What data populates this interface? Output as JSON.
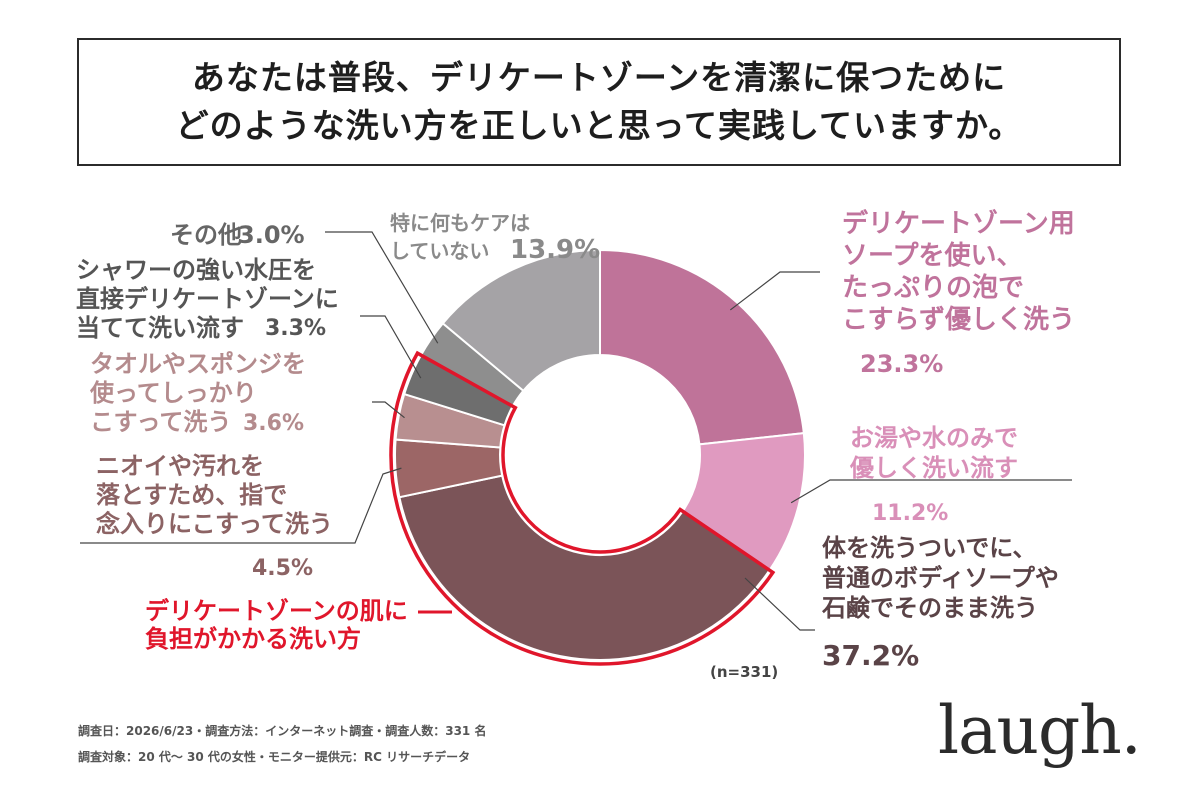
{
  "title": {
    "line1": "あなたは普段、デリケートゾーンを清潔に保つために",
    "line2": "どのような洗い方を正しいと思って実践していますか。"
  },
  "chart_data": {
    "type": "pie",
    "variant": "donut",
    "n_label": "(n=331)",
    "slices": [
      {
        "label": "デリケートゾーン用ソープを使い、たっぷりの泡でこすらず優しく洗う",
        "value": 23.3,
        "value_label": "23.3%",
        "color": "#bf7399",
        "text_color": "#c0739c"
      },
      {
        "label": "お湯や水のみで優しく洗い流す",
        "value": 11.2,
        "value_label": "11.2%",
        "color": "#e09ac0",
        "text_color": "#d98fb8"
      },
      {
        "label": "体を洗うついでに、普通のボディソープや石鹸でそのまま洗う",
        "value": 37.2,
        "value_label": "37.2%",
        "color": "#7b5458",
        "text_color": "#5a4347",
        "highlight": true
      },
      {
        "label": "ニオイや汚れを落とすため、指で念入りにこすって洗う",
        "value": 4.5,
        "value_label": "4.5%",
        "color": "#9c6666",
        "text_color": "#8c6364",
        "highlight": true
      },
      {
        "label": "タオルやスポンジを使ってしっかりこすって洗う",
        "value": 3.6,
        "value_label": "3.6%",
        "color": "#b88f90",
        "text_color": "#b48b8d",
        "highlight": true
      },
      {
        "label": "シャワーの強い水圧を直接デリケートゾーンに当てて洗い流す",
        "value": 3.3,
        "value_label": "3.3%",
        "color": "#6e6e6e",
        "text_color": "#555555",
        "highlight": true
      },
      {
        "label": "その他",
        "value": 3.0,
        "value_label": "3.0%",
        "color": "#8e8e8e",
        "text_color": "#666666"
      },
      {
        "label": "特に何もケアはしていない",
        "value": 13.9,
        "value_label": "13.9%",
        "color": "#a5a3a6",
        "text_color": "#8a8a8a"
      }
    ],
    "label_lines": {
      "s0": [
        "デリケートゾーン用",
        "ソープを使い、",
        "たっぷりの泡で",
        "こすらず優しく洗う"
      ],
      "s1": [
        "お湯や水のみで",
        "優しく洗い流す"
      ],
      "s2": [
        "体を洗うついでに、",
        "普通のボディソープや",
        "石鹸でそのまま洗う"
      ],
      "s3": [
        "ニオイや汚れを",
        "落とすため、指で",
        "念入りにこすって洗う"
      ],
      "s4": [
        "タオルやスポンジを",
        "使ってしっかり",
        "こすって洗う"
      ],
      "s5": [
        "シャワーの強い水圧を",
        "直接デリケートゾーンに",
        "当てて洗い流す"
      ],
      "s6": [
        "その他"
      ],
      "s7": [
        "特に何もケアは",
        "していない"
      ]
    },
    "highlight_legend": {
      "lines": [
        "デリケートゾーンの肌に",
        "負担がかかる洗い方"
      ],
      "color": "#e0162b"
    }
  },
  "footer": {
    "line1": "調査日：2026/6/23・調査方法：インターネット調査・調査人数：331 名",
    "line2": "調査対象：20 代〜 30 代の女性・モニター提供元：RC リサーチデータ"
  },
  "logo": "laugh."
}
